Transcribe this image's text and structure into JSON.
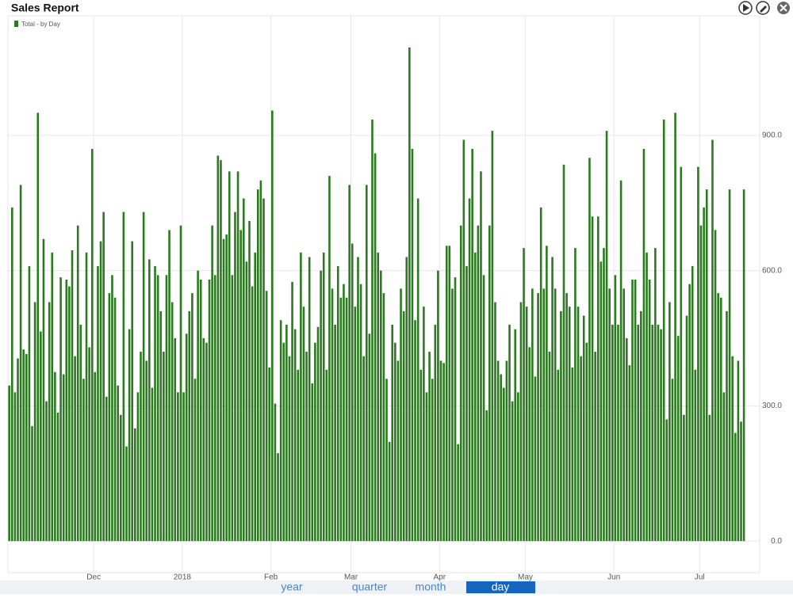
{
  "header": {
    "title": "Sales Report"
  },
  "chart_data": {
    "type": "bar",
    "legend": "Total - by Day",
    "color": "#2b7a1f",
    "grid": true,
    "ylim": [
      -70,
      1165
    ],
    "yticks": [
      {
        "value": 0,
        "label": "0.0"
      },
      {
        "value": 300,
        "label": "300.0"
      },
      {
        "value": 600,
        "label": "600.0"
      },
      {
        "value": 900,
        "label": "900.0"
      }
    ],
    "categories": [
      null,
      null,
      null,
      null,
      null,
      null,
      null,
      null,
      null,
      null,
      null,
      null,
      null,
      null,
      null,
      null,
      null,
      null,
      null,
      null,
      null,
      null,
      null,
      null,
      null,
      null,
      null,
      null,
      null,
      null,
      "Dec",
      null,
      null,
      null,
      null,
      null,
      null,
      null,
      null,
      null,
      null,
      null,
      null,
      null,
      null,
      null,
      null,
      null,
      null,
      null,
      null,
      null,
      null,
      null,
      null,
      null,
      null,
      null,
      null,
      null,
      null,
      "2018",
      null,
      null,
      null,
      null,
      null,
      null,
      null,
      null,
      null,
      null,
      null,
      null,
      null,
      null,
      null,
      null,
      null,
      null,
      null,
      null,
      null,
      null,
      null,
      null,
      null,
      null,
      null,
      null,
      null,
      null,
      "Feb",
      null,
      null,
      null,
      null,
      null,
      null,
      null,
      null,
      null,
      null,
      null,
      null,
      null,
      null,
      null,
      null,
      null,
      null,
      null,
      null,
      null,
      null,
      null,
      null,
      null,
      null,
      null,
      "Mar",
      null,
      null,
      null,
      null,
      null,
      null,
      null,
      null,
      null,
      null,
      null,
      null,
      null,
      null,
      null,
      null,
      null,
      null,
      null,
      null,
      null,
      null,
      null,
      null,
      null,
      null,
      null,
      null,
      null,
      null,
      "Apr",
      null,
      null,
      null,
      null,
      null,
      null,
      null,
      null,
      null,
      null,
      null,
      null,
      null,
      null,
      null,
      null,
      null,
      null,
      null,
      null,
      null,
      null,
      null,
      null,
      null,
      null,
      null,
      null,
      null,
      "May",
      null,
      null,
      null,
      null,
      null,
      null,
      null,
      null,
      null,
      null,
      null,
      null,
      null,
      null,
      null,
      null,
      null,
      null,
      null,
      null,
      null,
      null,
      null,
      null,
      null,
      null,
      null,
      null,
      null,
      null,
      "Jun",
      null,
      null,
      null,
      null,
      null,
      null,
      null,
      null,
      null,
      null,
      null,
      null,
      null,
      null,
      null,
      null,
      null,
      null,
      null,
      null,
      null,
      null,
      null,
      null,
      null,
      null,
      null,
      null,
      null,
      "Jul",
      null,
      null,
      null,
      null,
      null,
      null,
      null,
      null,
      null,
      null,
      null,
      null,
      null,
      null,
      null
    ],
    "values": [
      345,
      740,
      330,
      405,
      790,
      425,
      415,
      610,
      255,
      530,
      950,
      465,
      670,
      310,
      530,
      640,
      375,
      285,
      585,
      370,
      580,
      565,
      645,
      410,
      700,
      480,
      360,
      640,
      430,
      870,
      375,
      610,
      665,
      730,
      320,
      550,
      590,
      540,
      345,
      280,
      730,
      210,
      470,
      665,
      250,
      330,
      420,
      730,
      400,
      625,
      340,
      610,
      590,
      510,
      420,
      590,
      690,
      530,
      450,
      330,
      700,
      330,
      460,
      510,
      550,
      360,
      600,
      580,
      450,
      440,
      580,
      700,
      590,
      855,
      845,
      670,
      680,
      820,
      590,
      730,
      820,
      690,
      760,
      620,
      710,
      565,
      640,
      780,
      800,
      760,
      555,
      385,
      955,
      305,
      195,
      490,
      440,
      480,
      410,
      575,
      470,
      380,
      640,
      520,
      420,
      630,
      350,
      440,
      475,
      600,
      640,
      380,
      810,
      560,
      480,
      610,
      540,
      570,
      540,
      790,
      660,
      520,
      630,
      570,
      410,
      790,
      460,
      935,
      860,
      640,
      600,
      550,
      360,
      220,
      480,
      440,
      400,
      560,
      510,
      630,
      1095,
      870,
      490,
      760,
      380,
      520,
      330,
      420,
      360,
      480,
      600,
      400,
      395,
      655,
      655,
      560,
      585,
      215,
      700,
      890,
      610,
      760,
      870,
      640,
      700,
      820,
      590,
      290,
      700,
      910,
      530,
      400,
      370,
      340,
      400,
      480,
      310,
      470,
      330,
      530,
      650,
      520,
      430,
      560,
      365,
      550,
      740,
      560,
      655,
      420,
      630,
      560,
      380,
      510,
      835,
      550,
      520,
      385,
      650,
      520,
      410,
      500,
      440,
      850,
      720,
      420,
      720,
      620,
      650,
      910,
      560,
      480,
      590,
      480,
      800,
      560,
      450,
      390,
      580,
      580,
      480,
      510,
      870,
      640,
      580,
      480,
      650,
      480,
      470,
      935,
      270,
      530,
      360,
      950,
      455,
      830,
      280,
      500,
      570,
      610,
      380,
      830,
      700,
      740,
      780,
      280,
      890,
      690,
      550,
      540,
      330,
      510,
      780,
      410,
      240,
      400,
      265,
      780
    ]
  },
  "controls": {
    "buttons": [
      "year",
      "quarter",
      "month",
      "day"
    ],
    "selected": 3
  }
}
